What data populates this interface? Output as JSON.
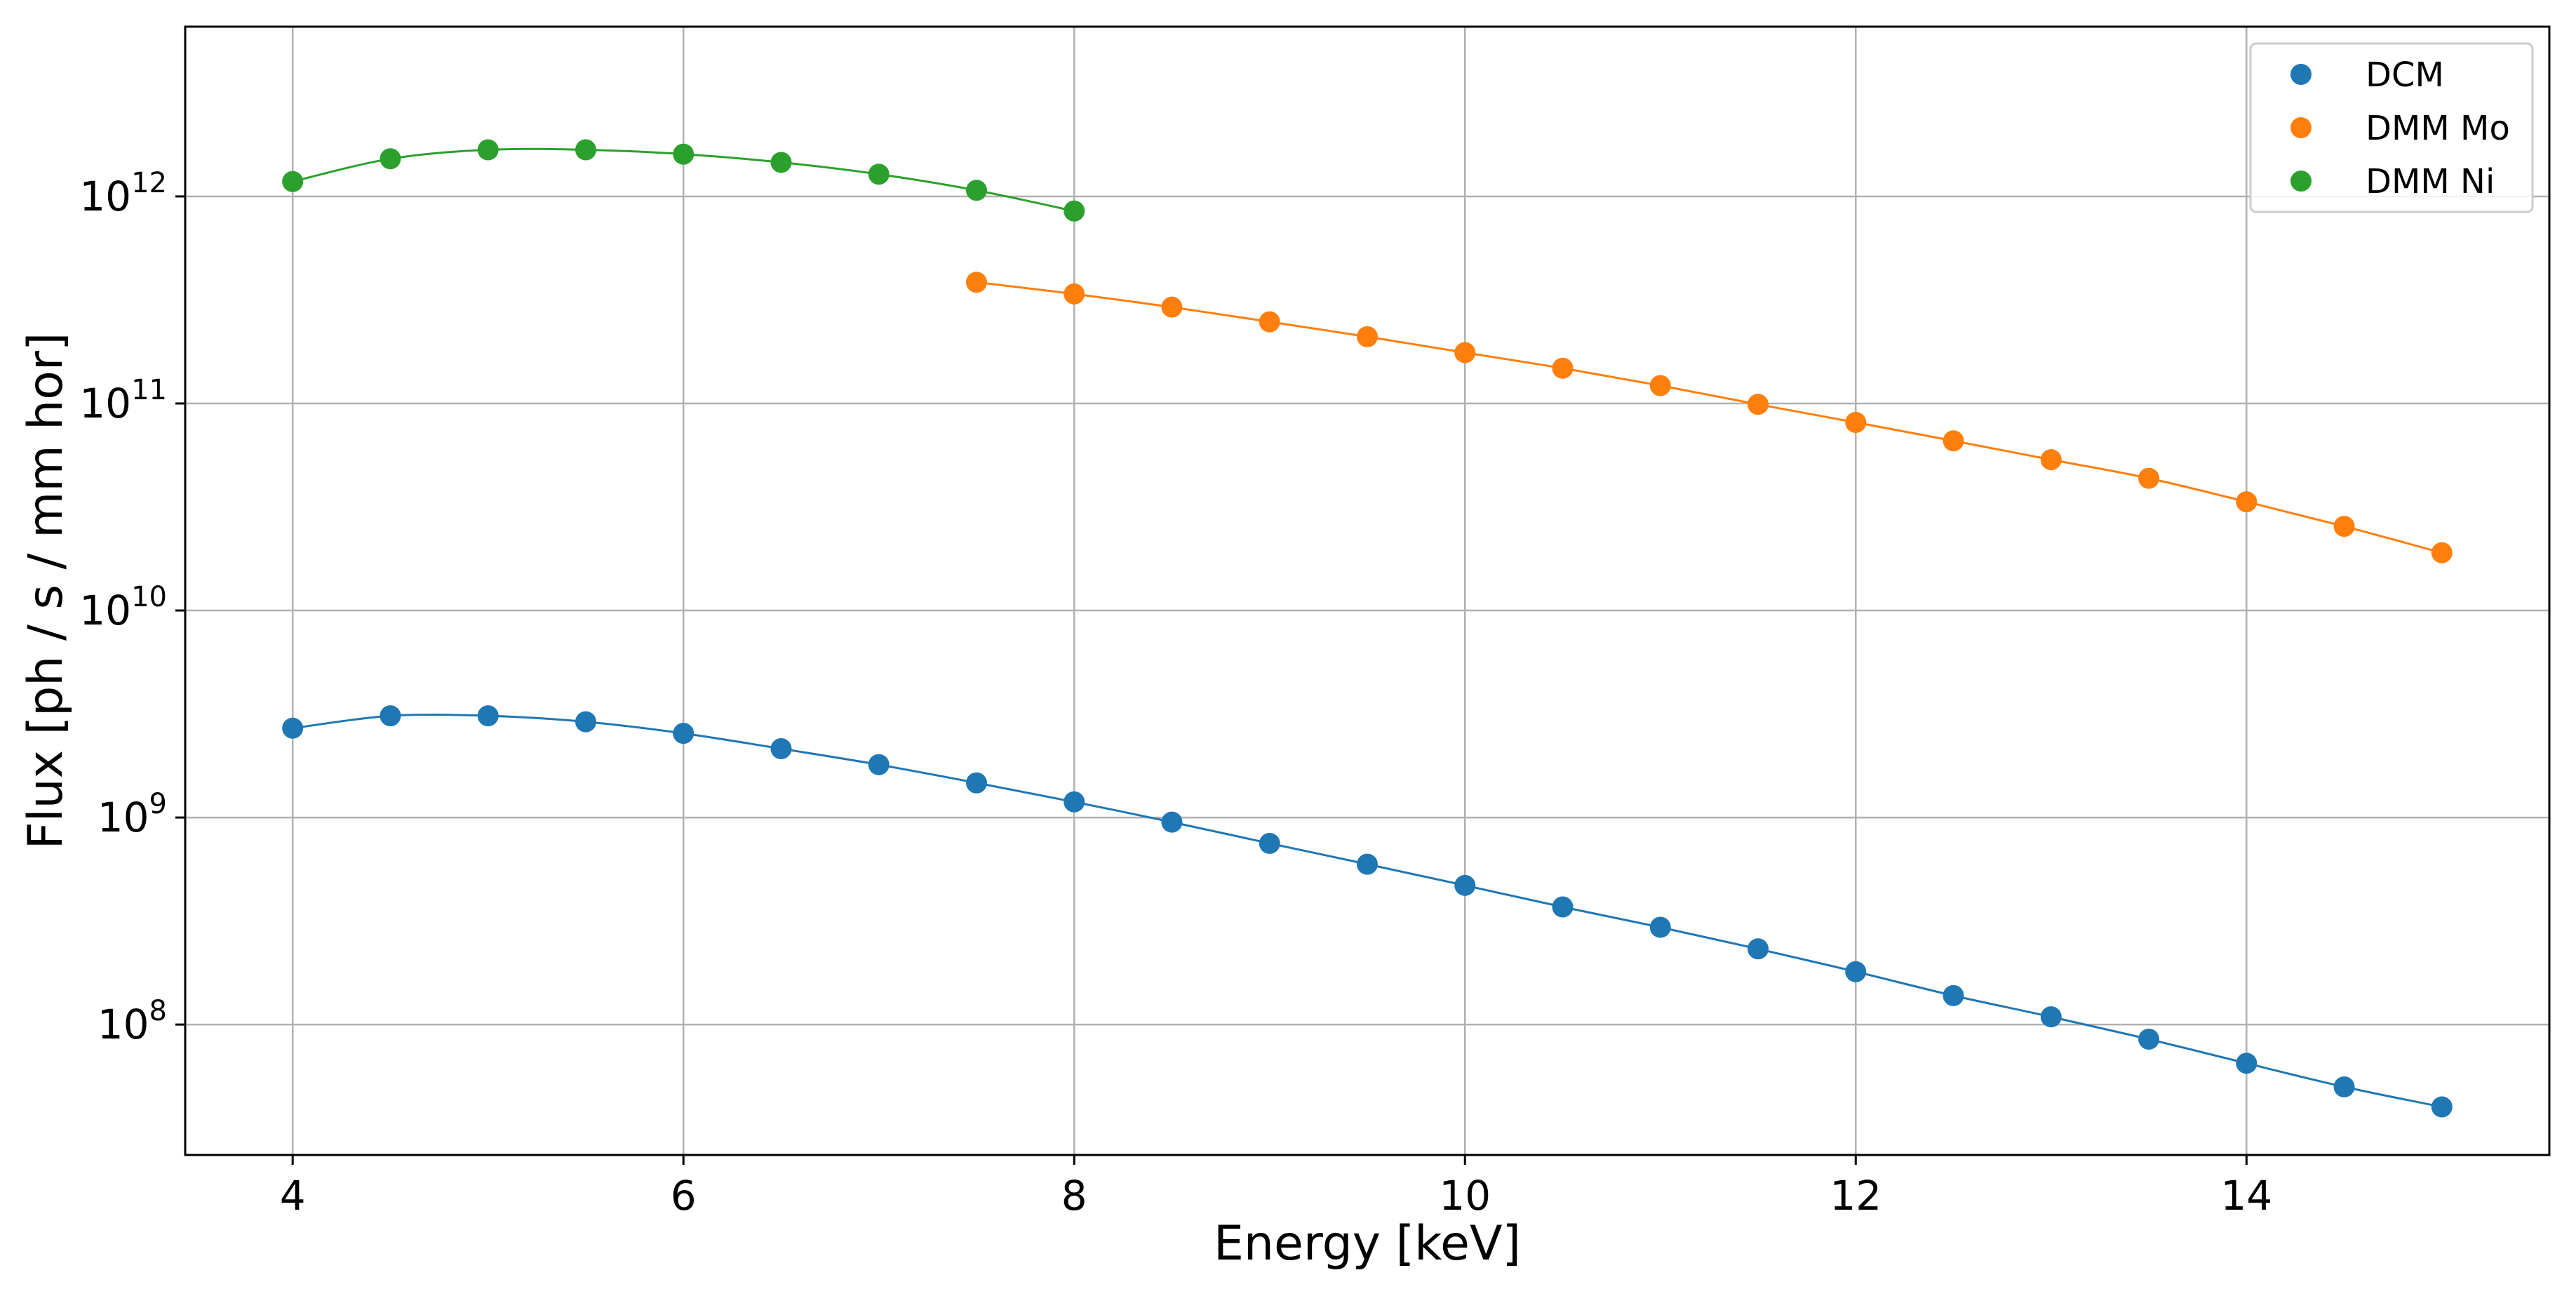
{
  "chart_data": {
    "type": "scatter",
    "title": "",
    "xlabel": "Energy [keV]",
    "ylabel": "Flux [ph / s / mm hor]",
    "xscale": "linear",
    "yscale": "log",
    "xlim": [
      3.45,
      15.55
    ],
    "ylim_log10": [
      7.37,
      12.82
    ],
    "grid": true,
    "legend_position": "top-right",
    "x_ticks": [
      {
        "value": 4,
        "label": "4"
      },
      {
        "value": 6,
        "label": "6"
      },
      {
        "value": 8,
        "label": "8"
      },
      {
        "value": 10,
        "label": "10"
      },
      {
        "value": 12,
        "label": "12"
      },
      {
        "value": 14,
        "label": "14"
      }
    ],
    "y_ticks": [
      {
        "exponent": 8,
        "base": "10",
        "power": "8"
      },
      {
        "exponent": 9,
        "base": "10",
        "power": "9"
      },
      {
        "exponent": 10,
        "base": "10",
        "power": "10"
      },
      {
        "exponent": 11,
        "base": "10",
        "power": "11"
      },
      {
        "exponent": 12,
        "base": "10",
        "power": "12"
      }
    ],
    "series": [
      {
        "name": "DCM",
        "color": "#1f77b4",
        "x": [
          4,
          4.5,
          5,
          5.5,
          6,
          6.5,
          7,
          7.5,
          8,
          8.5,
          9,
          9.5,
          10,
          10.5,
          11,
          11.5,
          12,
          12.5,
          13,
          13.5,
          14,
          14.5,
          15
        ],
        "y": [
          2700000000.0,
          3100000000.0,
          3100000000.0,
          2900000000.0,
          2550000000.0,
          2150000000.0,
          1800000000.0,
          1470000000.0,
          1190000000.0,
          950000000.0,
          750000000.0,
          595000000.0,
          470000000.0,
          370000000.0,
          295000000.0,
          232000000.0,
          180000000.0,
          138000000.0,
          109000000.0,
          85000000.0,
          65000000.0,
          50000000.0,
          40000000.0
        ]
      },
      {
        "name": "DMM Mo",
        "color": "#ff7f0e",
        "x": [
          7.5,
          8,
          8.5,
          9,
          9.5,
          10,
          10.5,
          11,
          11.5,
          12,
          12.5,
          13,
          13.5,
          14,
          14.5,
          15
        ],
        "y": [
          385000000000.0,
          338000000000.0,
          292000000000.0,
          248000000000.0,
          210000000000.0,
          176000000000.0,
          148000000000.0,
          122000000000.0,
          99000000000.0,
          81000000000.0,
          66000000000.0,
          53500000000.0,
          43500000000.0,
          33500000000.0,
          25500000000.0,
          19000000000.0
        ]
      },
      {
        "name": "DMM Ni",
        "color": "#2ca02c",
        "x": [
          4,
          4.5,
          5,
          5.5,
          6,
          6.5,
          7,
          7.5,
          8
        ],
        "y": [
          1180000000000.0,
          1520000000000.0,
          1680000000000.0,
          1680000000000.0,
          1600000000000.0,
          1460000000000.0,
          1280000000000.0,
          1070000000000.0,
          850000000000.0
        ]
      }
    ]
  }
}
